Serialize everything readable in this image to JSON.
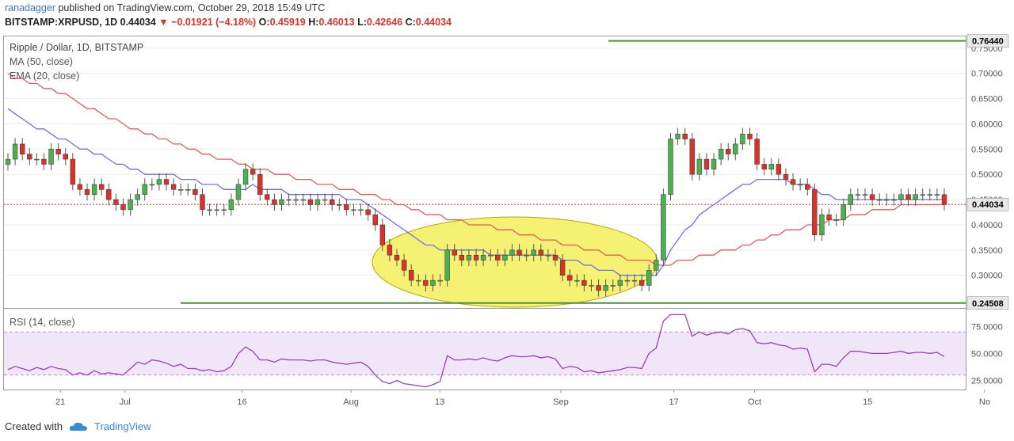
{
  "header": {
    "author": "ranadagger",
    "published_text": "published on TradingView.com, October 29, 2018 15:49 UTC",
    "symbol": "BITSTAMP:XRPUSD, 1D",
    "last": "0.44034",
    "arrow": "▼",
    "change": "−0.01921 (−4.18%)",
    "o_label": "O:",
    "o_value": "0.45919",
    "h_label": "H:",
    "h_value": "0.46013",
    "l_label": "L:",
    "l_value": "0.42646",
    "c_label": "C:",
    "c_value": "0.44034"
  },
  "legends": {
    "main": "Ripple / Dollar, 1D, BITSTAMP",
    "ma": "MA (50, close)",
    "ema": "EMA (20, close)",
    "rsi": "RSI (14, close)"
  },
  "footer": {
    "created_with": "Created with",
    "brand": "TradingView"
  },
  "colors": {
    "up": "#4caf50",
    "down": "#d9322b",
    "ma": "#6c70e0",
    "ema": "#e85a5a",
    "hline": "#4e8f3e",
    "rsi": "#9c3fb5",
    "ellipse_fill": "#f2ef5b",
    "ellipse_stroke": "#b7a600"
  },
  "chart_data": [
    {
      "type": "candlestick",
      "title": "Ripple / Dollar, 1D, BITSTAMP",
      "x_ticks": [
        "21",
        "Jul",
        "16",
        "Aug",
        "13",
        "Sep",
        "17",
        "Oct",
        "15",
        "No"
      ],
      "y_ticks": [
        "0.30000",
        "0.35000",
        "0.40000",
        "0.45000",
        "0.50000",
        "0.55000",
        "0.60000",
        "0.65000",
        "0.70000",
        "0.75000"
      ],
      "ylim": [
        0.24,
        0.77
      ],
      "horizontal_lines": [
        {
          "value": 0.7644,
          "label": "0.76440"
        },
        {
          "value": 0.24508,
          "label": "0.24508"
        }
      ],
      "last_price": {
        "value": 0.44034,
        "label": "0.44034"
      },
      "series": [
        {
          "name": "Ripple / Dollar",
          "kind": "close",
          "values": [
            0.53,
            0.56,
            0.54,
            0.53,
            0.53,
            0.52,
            0.55,
            0.54,
            0.53,
            0.48,
            0.47,
            0.46,
            0.48,
            0.47,
            0.45,
            0.44,
            0.43,
            0.45,
            0.46,
            0.48,
            0.48,
            0.49,
            0.48,
            0.47,
            0.47,
            0.47,
            0.46,
            0.43,
            0.43,
            0.43,
            0.43,
            0.45,
            0.48,
            0.51,
            0.5,
            0.46,
            0.45,
            0.44,
            0.45,
            0.45,
            0.45,
            0.45,
            0.44,
            0.45,
            0.45,
            0.44,
            0.44,
            0.43,
            0.43,
            0.43,
            0.42,
            0.4,
            0.36,
            0.34,
            0.33,
            0.31,
            0.29,
            0.29,
            0.28,
            0.29,
            0.29,
            0.35,
            0.34,
            0.33,
            0.34,
            0.33,
            0.34,
            0.34,
            0.33,
            0.34,
            0.35,
            0.34,
            0.34,
            0.35,
            0.34,
            0.34,
            0.33,
            0.3,
            0.29,
            0.29,
            0.28,
            0.28,
            0.27,
            0.28,
            0.28,
            0.29,
            0.29,
            0.29,
            0.28,
            0.31,
            0.33,
            0.46,
            0.57,
            0.58,
            0.57,
            0.5,
            0.53,
            0.51,
            0.53,
            0.55,
            0.54,
            0.56,
            0.58,
            0.57,
            0.52,
            0.51,
            0.52,
            0.5,
            0.49,
            0.48,
            0.48,
            0.47,
            0.38,
            0.42,
            0.41,
            0.41,
            0.44,
            0.46,
            0.46,
            0.46,
            0.45,
            0.45,
            0.45,
            0.45,
            0.46,
            0.45,
            0.46,
            0.46,
            0.46,
            0.46,
            0.44034
          ]
        },
        {
          "name": "MA (50, close)",
          "values": [
            0.7,
            0.69,
            0.69,
            0.68,
            0.68,
            0.67,
            0.67,
            0.66,
            0.66,
            0.65,
            0.64,
            0.63,
            0.63,
            0.62,
            0.61,
            0.61,
            0.6,
            0.59,
            0.59,
            0.58,
            0.58,
            0.57,
            0.57,
            0.56,
            0.56,
            0.55,
            0.55,
            0.54,
            0.54,
            0.53,
            0.53,
            0.53,
            0.52,
            0.52,
            0.51,
            0.51,
            0.51,
            0.5,
            0.5,
            0.5,
            0.49,
            0.49,
            0.49,
            0.48,
            0.48,
            0.48,
            0.47,
            0.47,
            0.47,
            0.46,
            0.46,
            0.46,
            0.45,
            0.45,
            0.44,
            0.44,
            0.43,
            0.43,
            0.42,
            0.42,
            0.42,
            0.41,
            0.41,
            0.41,
            0.4,
            0.4,
            0.4,
            0.4,
            0.39,
            0.39,
            0.39,
            0.38,
            0.38,
            0.38,
            0.37,
            0.37,
            0.37,
            0.36,
            0.36,
            0.36,
            0.35,
            0.35,
            0.35,
            0.34,
            0.34,
            0.34,
            0.33,
            0.33,
            0.33,
            0.33,
            0.32,
            0.32,
            0.32,
            0.33,
            0.33,
            0.33,
            0.34,
            0.34,
            0.34,
            0.35,
            0.35,
            0.35,
            0.36,
            0.36,
            0.37,
            0.37,
            0.38,
            0.38,
            0.39,
            0.39,
            0.39,
            0.4,
            0.4,
            0.4,
            0.41,
            0.41,
            0.41,
            0.42,
            0.42,
            0.42,
            0.43,
            0.43,
            0.43,
            0.43,
            0.44,
            0.44,
            0.44,
            0.44,
            0.44,
            0.44,
            0.44
          ]
        },
        {
          "name": "EMA (20, close)",
          "values": [
            0.63,
            0.62,
            0.61,
            0.6,
            0.59,
            0.59,
            0.58,
            0.57,
            0.57,
            0.56,
            0.55,
            0.55,
            0.54,
            0.54,
            0.53,
            0.52,
            0.52,
            0.51,
            0.51,
            0.5,
            0.5,
            0.5,
            0.5,
            0.5,
            0.49,
            0.49,
            0.49,
            0.48,
            0.48,
            0.48,
            0.47,
            0.47,
            0.47,
            0.47,
            0.48,
            0.47,
            0.47,
            0.47,
            0.47,
            0.46,
            0.46,
            0.46,
            0.46,
            0.46,
            0.46,
            0.46,
            0.46,
            0.45,
            0.45,
            0.45,
            0.44,
            0.43,
            0.42,
            0.41,
            0.4,
            0.39,
            0.38,
            0.37,
            0.36,
            0.36,
            0.35,
            0.35,
            0.35,
            0.35,
            0.35,
            0.35,
            0.35,
            0.34,
            0.34,
            0.34,
            0.34,
            0.34,
            0.34,
            0.34,
            0.34,
            0.34,
            0.34,
            0.33,
            0.33,
            0.33,
            0.32,
            0.32,
            0.31,
            0.31,
            0.31,
            0.3,
            0.3,
            0.3,
            0.3,
            0.3,
            0.3,
            0.32,
            0.35,
            0.37,
            0.39,
            0.4,
            0.42,
            0.43,
            0.44,
            0.45,
            0.46,
            0.47,
            0.48,
            0.48,
            0.49,
            0.49,
            0.49,
            0.49,
            0.49,
            0.48,
            0.48,
            0.48,
            0.47,
            0.46,
            0.46,
            0.45,
            0.45,
            0.45,
            0.45,
            0.45,
            0.45,
            0.45,
            0.45,
            0.45,
            0.45,
            0.45,
            0.45,
            0.45,
            0.45,
            0.45,
            0.45
          ]
        }
      ]
    },
    {
      "type": "line",
      "title": "RSI (14, close)",
      "y_ticks": [
        "25.0000",
        "50.0000",
        "75.0000"
      ],
      "ylim": [
        18,
        90
      ],
      "bands": [
        30,
        70
      ],
      "series": [
        {
          "name": "RSI (14, close)",
          "values": [
            35,
            38,
            36,
            34,
            37,
            35,
            38,
            36,
            35,
            30,
            32,
            30,
            34,
            31,
            32,
            31,
            30,
            36,
            42,
            40,
            44,
            43,
            41,
            38,
            40,
            36,
            36,
            34,
            35,
            33,
            34,
            38,
            50,
            56,
            52,
            44,
            44,
            42,
            45,
            44,
            44,
            44,
            43,
            44,
            44,
            42,
            41,
            40,
            41,
            42,
            38,
            30,
            24,
            22,
            25,
            22,
            21,
            20,
            19,
            21,
            24,
            48,
            44,
            44,
            45,
            44,
            46,
            44,
            43,
            46,
            48,
            47,
            47,
            48,
            46,
            47,
            45,
            36,
            38,
            37,
            33,
            34,
            32,
            33,
            34,
            35,
            37,
            37,
            36,
            50,
            55,
            80,
            86,
            86,
            86,
            66,
            70,
            67,
            69,
            70,
            68,
            72,
            73,
            71,
            60,
            59,
            60,
            58,
            57,
            54,
            55,
            54,
            33,
            40,
            40,
            38,
            46,
            52,
            52,
            51,
            50,
            50,
            50,
            51,
            52,
            50,
            51,
            51,
            50,
            51,
            47
          ]
        }
      ]
    }
  ]
}
